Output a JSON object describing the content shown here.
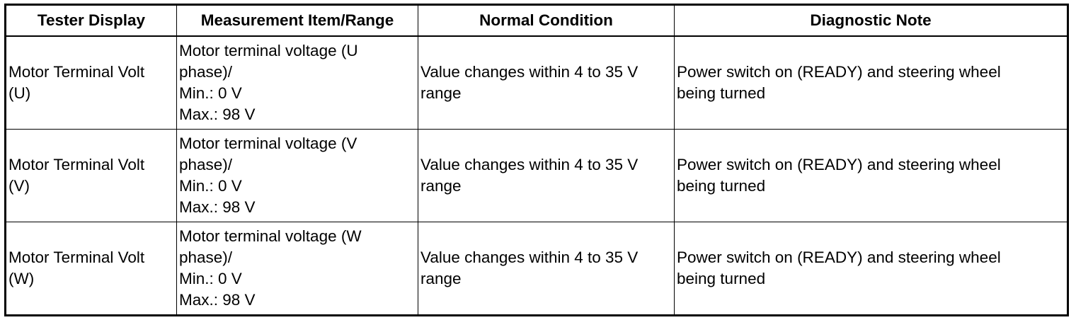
{
  "table": {
    "headers": [
      "Tester Display",
      "Measurement Item/Range",
      "Normal Condition",
      "Diagnostic Note"
    ],
    "rows": [
      {
        "tester_display": [
          "Motor Terminal Volt",
          "(U)"
        ],
        "measurement": [
          "Motor terminal voltage (U",
          "phase)/",
          "Min.: 0 V",
          "Max.: 98 V"
        ],
        "normal_condition": [
          "Value changes within 4 to 35 V",
          "range"
        ],
        "diagnostic_note": [
          "Power switch on (READY) and steering wheel",
          "being turned"
        ]
      },
      {
        "tester_display": [
          "Motor Terminal Volt",
          "(V)"
        ],
        "measurement": [
          "Motor terminal voltage (V",
          "phase)/",
          "Min.: 0 V",
          "Max.: 98 V"
        ],
        "normal_condition": [
          "Value changes within 4 to 35 V",
          "range"
        ],
        "diagnostic_note": [
          "Power switch on (READY) and steering wheel",
          "being turned"
        ]
      },
      {
        "tester_display": [
          "Motor Terminal Volt",
          "(W)"
        ],
        "measurement": [
          "Motor terminal voltage (W",
          "phase)/",
          "Min.: 0 V",
          "Max.: 98 V"
        ],
        "normal_condition": [
          "Value changes within 4 to 35 V",
          "range"
        ],
        "diagnostic_note": [
          "Power switch on (READY) and steering wheel",
          "being turned"
        ]
      }
    ]
  }
}
